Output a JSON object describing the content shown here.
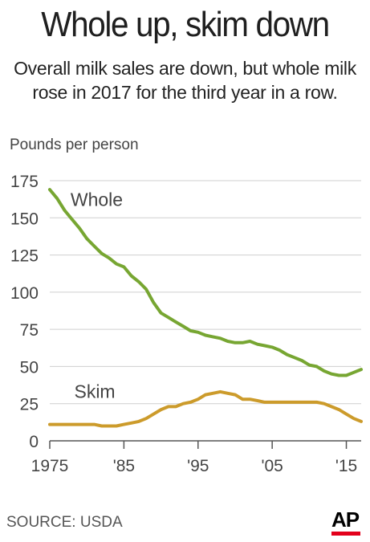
{
  "title": "Whole up, skim down",
  "subtitle_line1": "Overall milk sales are down, but whole milk",
  "subtitle_line2": "rose in 2017 for the third year in a row.",
  "source": "SOURCE: USDA",
  "logo_text": "AP",
  "colors": {
    "whole": "#77a632",
    "skim": "#cc9b2b",
    "grid": "#cfcfcf",
    "text": "#444444",
    "logo_bar": "#e3001b"
  },
  "chart_data": {
    "type": "line",
    "ylabel": "Pounds per person",
    "ylim": [
      0,
      175
    ],
    "xlim": [
      1975,
      2017
    ],
    "yticks": [
      0,
      25,
      50,
      75,
      100,
      125,
      150,
      175
    ],
    "ytick_labels": [
      "0",
      "25",
      "50",
      "75",
      "100",
      "125",
      "150",
      "175"
    ],
    "xticks": [
      1975,
      1985,
      1995,
      2005,
      2015
    ],
    "xtick_labels": [
      "1975",
      "'85",
      "'95",
      "'05",
      "'15"
    ],
    "grid": true,
    "series": [
      {
        "name": "Whole",
        "x": [
          1975,
          1976,
          1977,
          1978,
          1979,
          1980,
          1981,
          1982,
          1983,
          1984,
          1985,
          1986,
          1987,
          1988,
          1989,
          1990,
          1991,
          1992,
          1993,
          1994,
          1995,
          1996,
          1997,
          1998,
          1999,
          2000,
          2001,
          2002,
          2003,
          2004,
          2005,
          2006,
          2007,
          2008,
          2009,
          2010,
          2011,
          2012,
          2013,
          2014,
          2015,
          2016,
          2017
        ],
        "values": [
          169,
          163,
          155,
          149,
          143,
          136,
          131,
          126,
          123,
          119,
          117,
          111,
          107,
          102,
          93,
          86,
          83,
          80,
          77,
          74,
          73,
          71,
          70,
          69,
          67,
          66,
          66,
          67,
          65,
          64,
          63,
          61,
          58,
          56,
          54,
          51,
          50,
          47,
          45,
          44,
          44,
          46,
          48
        ]
      },
      {
        "name": "Skim",
        "x": [
          1975,
          1976,
          1977,
          1978,
          1979,
          1980,
          1981,
          1982,
          1983,
          1984,
          1985,
          1986,
          1987,
          1988,
          1989,
          1990,
          1991,
          1992,
          1993,
          1994,
          1995,
          1996,
          1997,
          1998,
          1999,
          2000,
          2001,
          2002,
          2003,
          2004,
          2005,
          2006,
          2007,
          2008,
          2009,
          2010,
          2011,
          2012,
          2013,
          2014,
          2015,
          2016,
          2017
        ],
        "values": [
          11,
          11,
          11,
          11,
          11,
          11,
          11,
          10,
          10,
          10,
          11,
          12,
          13,
          15,
          18,
          21,
          23,
          23,
          25,
          26,
          28,
          31,
          32,
          33,
          32,
          31,
          28,
          28,
          27,
          26,
          26,
          26,
          26,
          26,
          26,
          26,
          26,
          25,
          23,
          21,
          18,
          15,
          13
        ]
      }
    ],
    "annotations": [
      {
        "text": "Whole",
        "x": 1977.8,
        "y": 158
      },
      {
        "text": "Skim",
        "x": 1978.3,
        "y": 29
      }
    ]
  }
}
